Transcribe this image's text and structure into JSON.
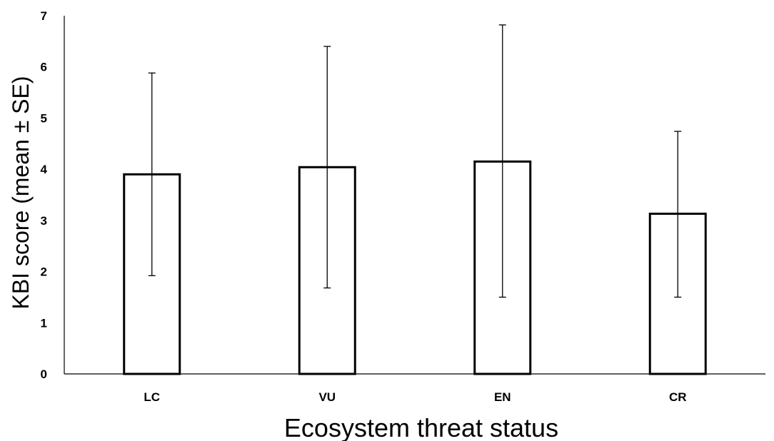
{
  "chart_data": {
    "type": "bar",
    "title": "",
    "xlabel": "Ecosystem threat status",
    "ylabel": "KBI score (mean ± SE)",
    "categories": [
      "LC",
      "VU",
      "EN",
      "CR"
    ],
    "series": [
      {
        "values": [
          3.9,
          4.04,
          4.15,
          3.13
        ],
        "error_low": [
          1.92,
          1.68,
          1.5,
          1.5
        ],
        "error_high": [
          5.88,
          6.4,
          6.82,
          4.74
        ]
      }
    ],
    "ylim": [
      0,
      7
    ],
    "yticks": [
      "0",
      "1",
      "2",
      "3",
      "4",
      "5",
      "6",
      "7"
    ],
    "grid": false,
    "legend": "none",
    "bar_fill": "#ffffff",
    "bar_stroke": "#000000"
  }
}
